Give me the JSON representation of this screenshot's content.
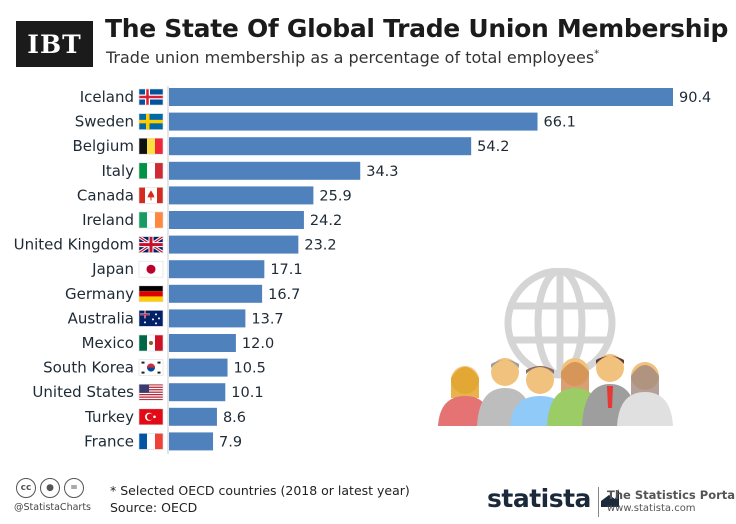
{
  "brand": {
    "logo_text": "IBT"
  },
  "header": {
    "title": "The State Of Global Trade Union Membership",
    "subtitle": "Trade union membership as a percentage of total employees",
    "subtitle_mark": "*"
  },
  "chart_data": {
    "type": "bar",
    "orientation": "horizontal",
    "title": "The State Of Global Trade Union Membership",
    "subtitle": "Trade union membership as a percentage of total employees*",
    "categories": [
      "Iceland",
      "Sweden",
      "Belgium",
      "Italy",
      "Canada",
      "Ireland",
      "United Kingdom",
      "Japan",
      "Germany",
      "Australia",
      "Mexico",
      "South Korea",
      "United States",
      "Turkey",
      "France"
    ],
    "values": [
      90.4,
      66.1,
      54.2,
      34.3,
      25.9,
      24.2,
      23.2,
      17.1,
      16.7,
      13.7,
      12.0,
      10.5,
      10.1,
      8.6,
      7.9
    ],
    "value_labels": [
      "90.4",
      "66.1",
      "54.2",
      "34.3",
      "25.9",
      "24.2",
      "23.2",
      "17.1",
      "16.7",
      "13.7",
      "12.0",
      "10.5",
      "10.1",
      "8.6",
      "7.9"
    ],
    "xlim": [
      0,
      100
    ],
    "grid": false,
    "bar_color": "#4f81bd",
    "flags": [
      "iceland-flag",
      "sweden-flag",
      "belgium-flag",
      "italy-flag",
      "canada-flag",
      "ireland-flag",
      "uk-flag",
      "japan-flag",
      "germany-flag",
      "australia-flag",
      "mexico-flag",
      "south-korea-flag",
      "usa-flag",
      "turkey-flag",
      "france-flag"
    ]
  },
  "footer": {
    "footnote": "* Selected OECD countries (2018 or latest year)",
    "source": "Source: OECD",
    "handle": "@StatistaCharts",
    "cc_icons": [
      "cc",
      "by",
      "nd"
    ],
    "statista": "statista",
    "portal": "The Statistics Portal",
    "portal_url": "www.statista.com"
  },
  "colors": {
    "bar": "#4f81bd",
    "text": "#1e2a35",
    "logo_bg": "#1b1b1b",
    "statista": "#1b2a3a"
  }
}
